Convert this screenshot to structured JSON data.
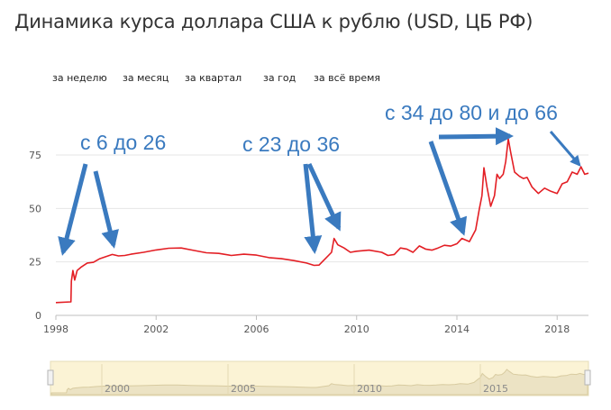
{
  "title": "Динамика курса доллара США к рублю (USD, ЦБ РФ)",
  "period_tabs": [
    {
      "label": "за неделю"
    },
    {
      "label": "за месяц"
    },
    {
      "label": "за квартал"
    },
    {
      "label": "за год"
    },
    {
      "label": "за всё время"
    }
  ],
  "annotations": [
    {
      "text": "с 6 до 26"
    },
    {
      "text": "с 23 до 36"
    },
    {
      "text": "с 34 до 80 и до 66"
    }
  ],
  "colors": {
    "line": "#e31e24",
    "arrow": "#3a7abf",
    "navigator_bg": "#fbf3d5",
    "grid": "#e6e6e6"
  },
  "chart_data": {
    "type": "line",
    "x_unit": "year",
    "xlim": [
      1998,
      2019.25
    ],
    "ylim": [
      0,
      75
    ],
    "y_ticks": [
      0,
      25,
      50,
      75
    ],
    "x_ticks": [
      1998,
      2002,
      2006,
      2010,
      2014,
      2018
    ],
    "grid": true,
    "series": [
      {
        "points": [
          [
            1998.0,
            6.0
          ],
          [
            1998.6,
            6.3
          ],
          [
            1998.62,
            16
          ],
          [
            1998.68,
            21
          ],
          [
            1998.75,
            16.5
          ],
          [
            1998.85,
            21
          ],
          [
            1999.0,
            22.5
          ],
          [
            1999.25,
            24.5
          ],
          [
            1999.5,
            24.8
          ],
          [
            1999.75,
            26.5
          ],
          [
            2000.0,
            27.5
          ],
          [
            2000.25,
            28.5
          ],
          [
            2000.5,
            27.8
          ],
          [
            2000.75,
            28.0
          ],
          [
            2001.0,
            28.6
          ],
          [
            2001.5,
            29.5
          ],
          [
            2002.0,
            30.6
          ],
          [
            2002.5,
            31.4
          ],
          [
            2003.0,
            31.5
          ],
          [
            2003.5,
            30.4
          ],
          [
            2004.0,
            29.3
          ],
          [
            2004.5,
            29.0
          ],
          [
            2005.0,
            28.0
          ],
          [
            2005.5,
            28.6
          ],
          [
            2006.0,
            28.2
          ],
          [
            2006.5,
            27.0
          ],
          [
            2007.0,
            26.5
          ],
          [
            2007.5,
            25.6
          ],
          [
            2008.0,
            24.5
          ],
          [
            2008.3,
            23.4
          ],
          [
            2008.5,
            23.5
          ],
          [
            2008.75,
            26.5
          ],
          [
            2009.0,
            29.5
          ],
          [
            2009.1,
            36.0
          ],
          [
            2009.25,
            33.0
          ],
          [
            2009.5,
            31.5
          ],
          [
            2009.75,
            29.5
          ],
          [
            2010.0,
            30.0
          ],
          [
            2010.5,
            30.5
          ],
          [
            2011.0,
            29.5
          ],
          [
            2011.25,
            28.0
          ],
          [
            2011.5,
            28.5
          ],
          [
            2011.75,
            31.5
          ],
          [
            2012.0,
            31.0
          ],
          [
            2012.25,
            29.5
          ],
          [
            2012.5,
            32.5
          ],
          [
            2012.75,
            31.0
          ],
          [
            2013.0,
            30.5
          ],
          [
            2013.25,
            31.5
          ],
          [
            2013.5,
            32.8
          ],
          [
            2013.75,
            32.4
          ],
          [
            2014.0,
            33.5
          ],
          [
            2014.2,
            36.0
          ],
          [
            2014.5,
            34.5
          ],
          [
            2014.75,
            40.0
          ],
          [
            2014.9,
            50.0
          ],
          [
            2015.0,
            56.0
          ],
          [
            2015.08,
            69.0
          ],
          [
            2015.2,
            60.0
          ],
          [
            2015.35,
            51.0
          ],
          [
            2015.5,
            56.0
          ],
          [
            2015.6,
            66.0
          ],
          [
            2015.7,
            64.0
          ],
          [
            2015.85,
            66.0
          ],
          [
            2015.95,
            72.0
          ],
          [
            2016.05,
            82.5
          ],
          [
            2016.15,
            76.0
          ],
          [
            2016.3,
            67.0
          ],
          [
            2016.5,
            65.0
          ],
          [
            2016.65,
            64.0
          ],
          [
            2016.8,
            64.5
          ],
          [
            2017.0,
            60.0
          ],
          [
            2017.25,
            57.0
          ],
          [
            2017.5,
            59.5
          ],
          [
            2017.75,
            58.0
          ],
          [
            2018.0,
            57.0
          ],
          [
            2018.2,
            61.5
          ],
          [
            2018.4,
            62.5
          ],
          [
            2018.6,
            67.0
          ],
          [
            2018.8,
            66.0
          ],
          [
            2018.95,
            69.5
          ],
          [
            2019.1,
            66.0
          ],
          [
            2019.25,
            66.5
          ]
        ]
      }
    ],
    "navigator": {
      "x_labels": [
        "2000",
        "2005",
        "2010",
        "2015"
      ],
      "x_label_years": [
        2000,
        2005,
        2010,
        2015
      ]
    }
  }
}
